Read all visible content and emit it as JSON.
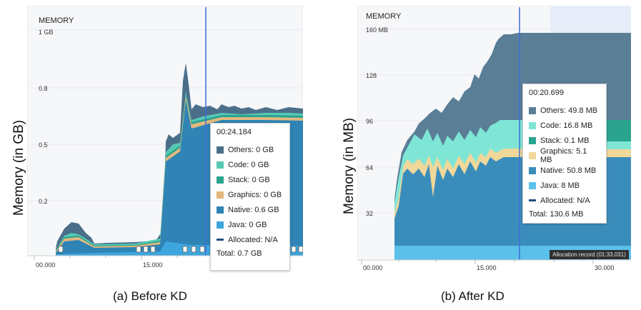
{
  "panels": [
    {
      "id": "a",
      "header": "MEMORY",
      "y_axis_label": "Memory (in GB)",
      "caption": "(a) Before KD",
      "y_ticks": [
        "1 GB",
        "0.8",
        "0.5",
        "0.2"
      ],
      "x_ticks": [
        "00.000",
        "15.000"
      ],
      "tooltip": {
        "time": "00:24.184",
        "rows": [
          {
            "label": "Others: 0 GB",
            "color": "#4a6f8a"
          },
          {
            "label": "Code: 0 GB",
            "color": "#56c9b4"
          },
          {
            "label": "Stack: 0 GB",
            "color": "#2aa38f"
          },
          {
            "label": "Graphics: 0 GB",
            "color": "#e3b77e"
          },
          {
            "label": "Native: 0.6 GB",
            "color": "#2f84b5"
          },
          {
            "label": "Java: 0 GB",
            "color": "#3ea6de"
          },
          {
            "label": "Allocated: N/A",
            "dashed": true,
            "color": "#1f4e79"
          }
        ],
        "total": "Total: 0.7 GB"
      }
    },
    {
      "id": "b",
      "header": "MEMORY",
      "y_axis_label": "Memory (in MB)",
      "caption": "(b) After KD",
      "y_ticks": [
        "160 MB",
        "128",
        "96",
        "64",
        "32"
      ],
      "x_ticks": [
        "00.000",
        "15.000",
        "30.000"
      ],
      "tooltip": {
        "time": "00:20.699",
        "rows": [
          {
            "label": "Others: 49.8 MB",
            "color": "#5a7e96"
          },
          {
            "label": "Code: 16.8 MB",
            "color": "#7fe6d6"
          },
          {
            "label": "Stack: 0.1 MB",
            "color": "#2aa38f"
          },
          {
            "label": "Graphics: 5.1 MB",
            "color": "#f0d79a"
          },
          {
            "label": "Native: 50.8 MB",
            "color": "#3a8dbb"
          },
          {
            "label": "Java: 8 MB",
            "color": "#5bc0ea"
          },
          {
            "label": "Allocated: N/A",
            "dashed": true,
            "color": "#1f4e79"
          }
        ],
        "total": "Total: 130.6 MB"
      },
      "badge": "Allocation record (01:33.031)"
    }
  ]
}
